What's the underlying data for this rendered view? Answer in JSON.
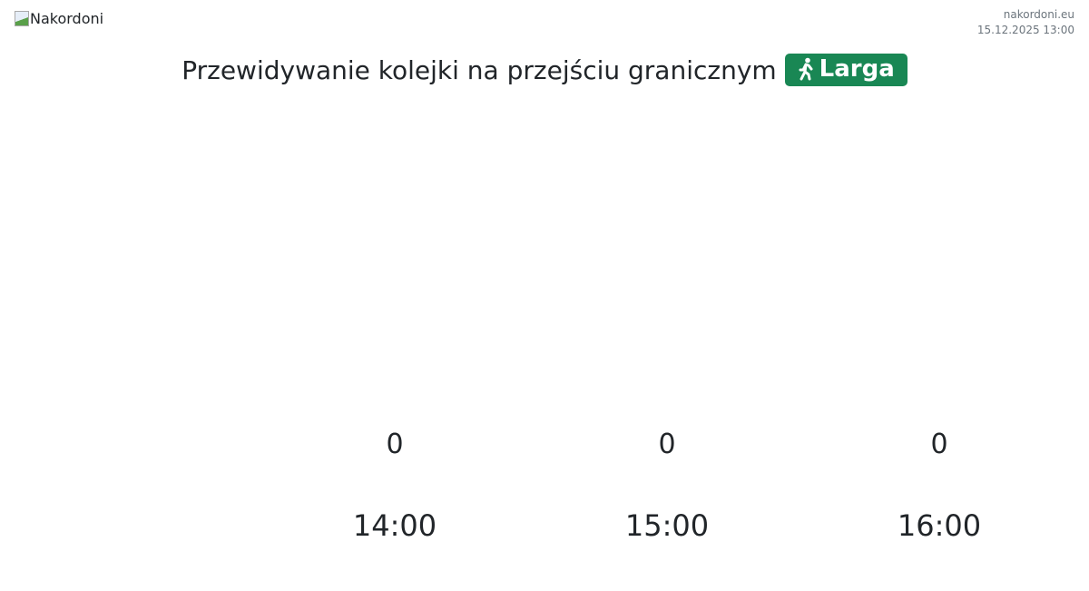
{
  "header": {
    "logo_alt": "Nakordoni",
    "site": "nakordoni.eu",
    "datetime": "15.12.2025 13:00"
  },
  "title": {
    "text": "Przewidywanie kolejki na przejściu granicznym",
    "badge": "Larga",
    "badge_icon": "walking-person-icon",
    "badge_color": "#198754"
  },
  "forecast": [
    {
      "time": "14:00",
      "value": "0"
    },
    {
      "time": "15:00",
      "value": "0"
    },
    {
      "time": "16:00",
      "value": "0"
    }
  ]
}
